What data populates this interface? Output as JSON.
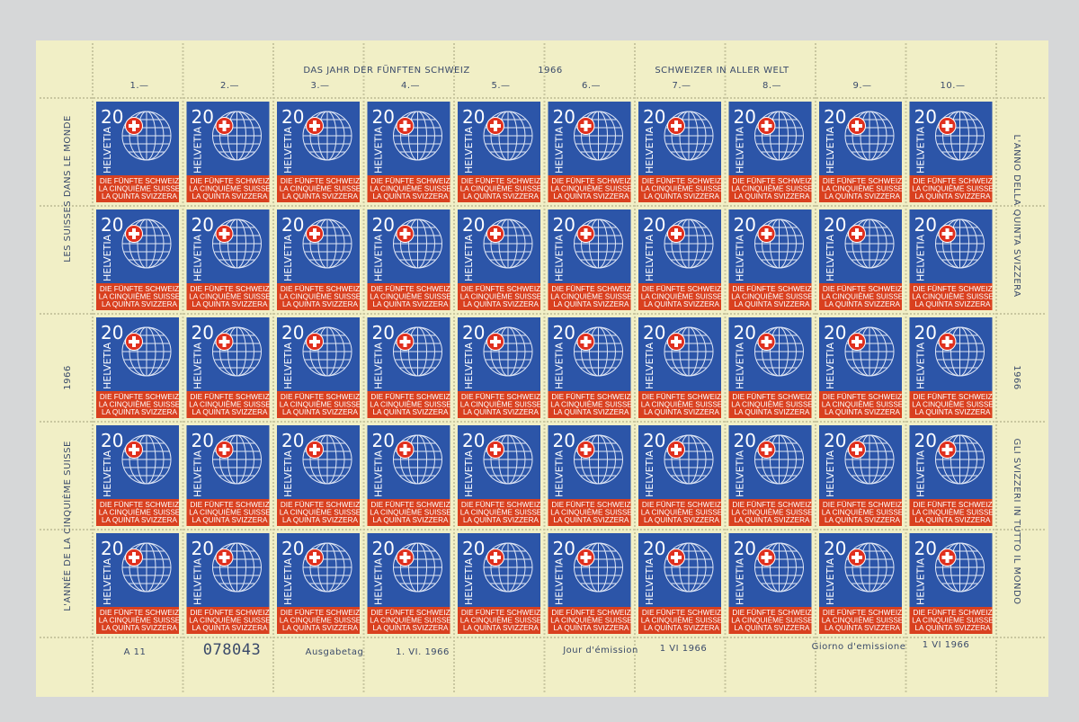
{
  "sheet": {
    "top_text": [
      "DAS JAHR DER FÜNFTEN SCHWEIZ",
      "1966",
      "SCHWEIZER IN ALLER WELT"
    ],
    "column_numbers": [
      "1.—",
      "2.—",
      "3.—",
      "4.—",
      "5.—",
      "6.—",
      "7.—",
      "8.—",
      "9.—",
      "10.—"
    ],
    "left_margin": [
      "LES SUISSES DANS LE MONDE",
      "1966",
      "L'ANNÉE DE LA CINQUIÈME SUISSE"
    ],
    "right_margin": [
      "L'ANNO DELLA QUINTA SVIZZERA",
      "1966",
      "GLI SVIZZERI IN TUTTO IL MONDO"
    ],
    "bottom_margin": [
      "A 11",
      "078043",
      "Ausgabetag",
      "1. VI. 1966",
      "Jour d'émission",
      "1 VI 1966",
      "Giorno d'emissione",
      "1 VI 1966"
    ],
    "stamp": {
      "value": "20",
      "country": "HELVETIA",
      "lines": [
        "DIE FÜNFTE SCHWEIZ",
        "LA CINQUIÈME SUISSE",
        "LA QUINTA SVIZZERA"
      ]
    }
  }
}
